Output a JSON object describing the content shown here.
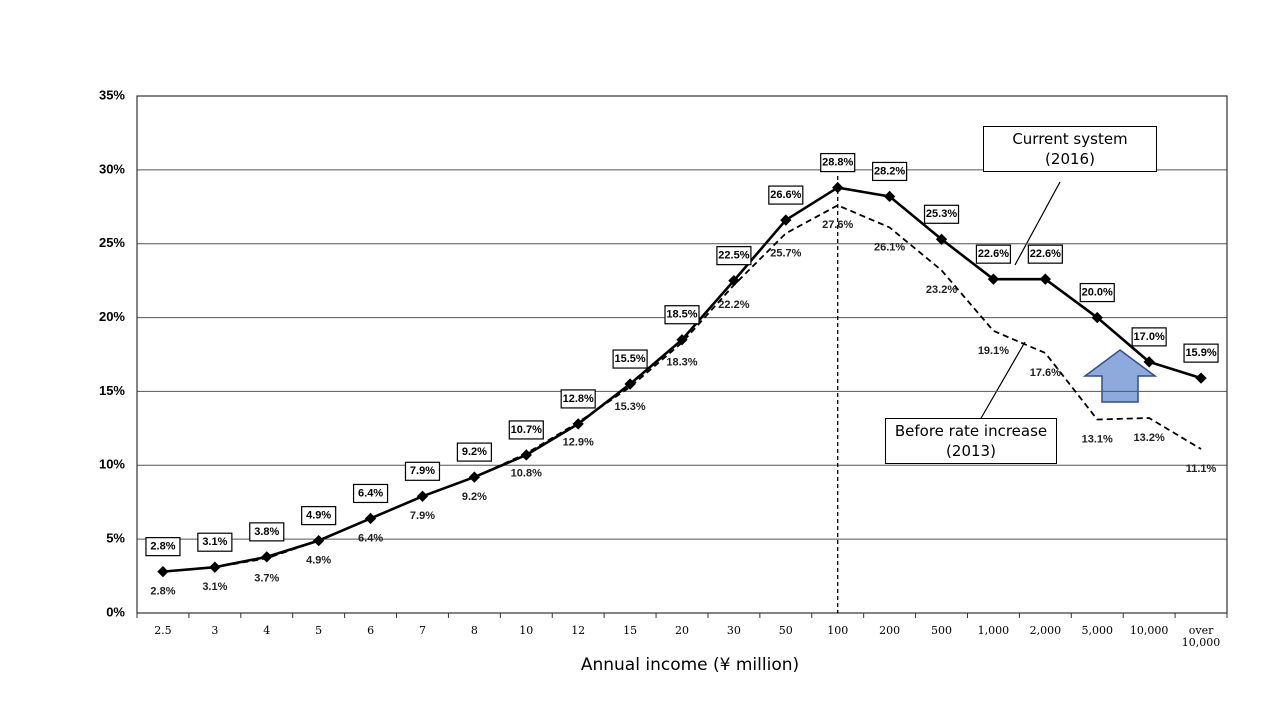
{
  "chart_data": {
    "type": "line",
    "xlabel": "Annual income (¥ million)",
    "categories": [
      "2.5",
      "3",
      "4",
      "5",
      "6",
      "7",
      "8",
      "10",
      "12",
      "15",
      "20",
      "30",
      "50",
      "100",
      "200",
      "500",
      "1,000",
      "2,000",
      "5,000",
      "10,000",
      "over 10,000"
    ],
    "series": [
      {
        "name": "Current system (2016)",
        "color": "#000000",
        "dash": false,
        "values": [
          2.8,
          3.1,
          3.8,
          4.9,
          6.4,
          7.9,
          9.2,
          10.7,
          12.8,
          15.5,
          18.5,
          22.5,
          26.6,
          28.8,
          28.2,
          25.3,
          22.6,
          22.6,
          20.0,
          17.0,
          15.9
        ],
        "value_labels": [
          "2.8%",
          "3.1%",
          "3.8%",
          "4.9%",
          "6.4%",
          "7.9%",
          "9.2%",
          "10.7%",
          "12.8%",
          "15.5%",
          "18.5%",
          "22.5%",
          "26.6%",
          "28.8%",
          "28.2%",
          "25.3%",
          "22.6%",
          "22.6%",
          "20.0%",
          "17.0%",
          "15.9%"
        ]
      },
      {
        "name": "Before rate increase (2013)",
        "color": "#000000",
        "dash": true,
        "values": [
          2.8,
          3.1,
          3.7,
          4.9,
          6.4,
          7.9,
          9.2,
          10.8,
          12.9,
          15.3,
          18.3,
          22.2,
          25.7,
          27.6,
          26.1,
          23.2,
          19.1,
          17.6,
          13.1,
          13.2,
          11.1
        ],
        "value_labels": [
          "2.8%",
          "3.1%",
          "3.7%",
          "4.9%",
          "6.4%",
          "7.9%",
          "9.2%",
          "10.8%",
          "12.9%",
          "15.3%",
          "18.3%",
          "22.2%",
          "25.7%",
          "27.6%",
          "26.1%",
          "23.2%",
          "19.1%",
          "17.6%",
          "13.1%",
          "13.2%",
          "11.1%"
        ]
      }
    ],
    "ylim": [
      0,
      35
    ],
    "yticks": [
      {
        "value": 0,
        "label": "0%"
      },
      {
        "value": 5,
        "label": "5%"
      },
      {
        "value": 10,
        "label": "10%"
      },
      {
        "value": 15,
        "label": "15%"
      },
      {
        "value": 20,
        "label": "20%"
      },
      {
        "value": 25,
        "label": "25%"
      },
      {
        "value": 30,
        "label": "30%"
      },
      {
        "value": 35,
        "label": "35%"
      }
    ],
    "grid": true,
    "vline": "100"
  }
}
